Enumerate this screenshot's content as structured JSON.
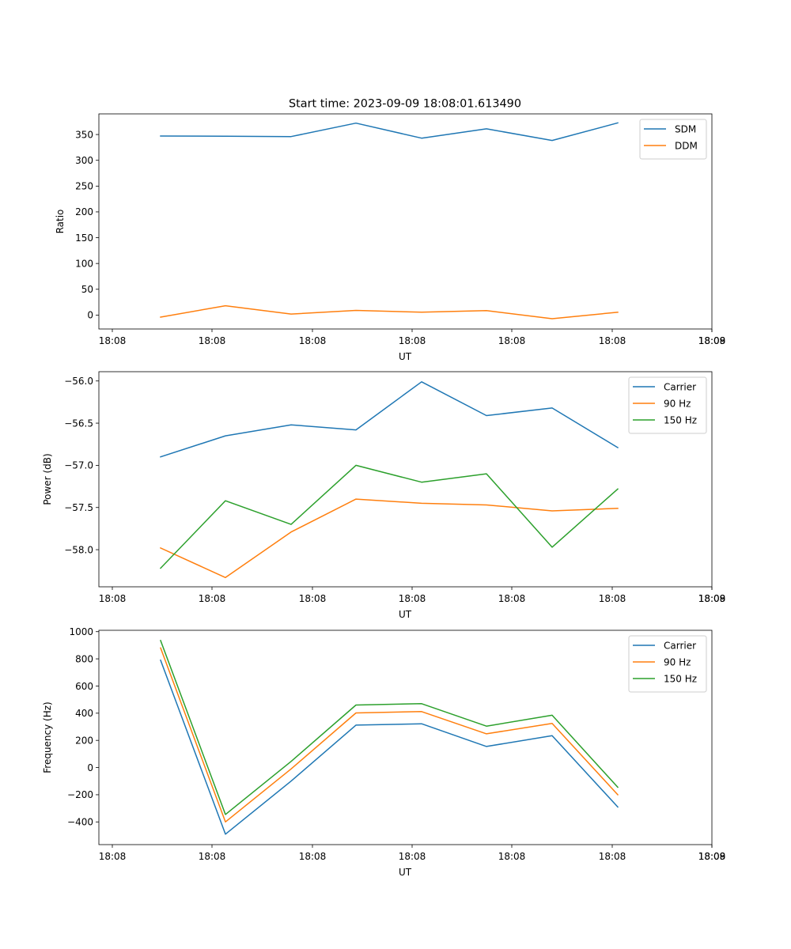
{
  "figure_title": "Start time: 2023-09-09 18:08:01.613490",
  "colors": {
    "blue": "#1f77b4",
    "orange": "#ff7f0e",
    "green": "#2ca02c"
  },
  "chart_data": [
    {
      "type": "line",
      "title": "Start time: 2023-09-09 18:08:01.613490",
      "xlabel": "UT",
      "ylabel": "Ratio",
      "x_ticks": [
        "18:08",
        "18:08",
        "18:08",
        "18:08",
        "18:08",
        "18:08",
        "18:08"
      ],
      "x_tick_last": "18:09",
      "yticks": [
        0,
        50,
        100,
        150,
        200,
        250,
        300,
        350
      ],
      "ytick_labels": [
        "0",
        "50",
        "100",
        "150",
        "200",
        "250",
        "300",
        "350"
      ],
      "ylim": [
        -27,
        390
      ],
      "legend": "top-right",
      "series": [
        {
          "name": "SDM",
          "color": "#1f77b4",
          "values": [
            347,
            346.8,
            346,
            372,
            343,
            361,
            338.5,
            372.5
          ]
        },
        {
          "name": "DDM",
          "color": "#ff7f0e",
          "values": [
            -4,
            18,
            2,
            9,
            5.5,
            8.5,
            -7,
            5.5
          ]
        }
      ]
    },
    {
      "type": "line",
      "xlabel": "UT",
      "ylabel": "Power (dB)",
      "x_ticks": [
        "18:08",
        "18:08",
        "18:08",
        "18:08",
        "18:08",
        "18:08",
        "18:08"
      ],
      "x_tick_last": "18:09",
      "yticks": [
        -58.0,
        -57.5,
        -57.0,
        -56.5,
        -56.0
      ],
      "ytick_labels": [
        "−58.0",
        "−57.5",
        "−57.0",
        "−56.5",
        "−56.0"
      ],
      "ylim": [
        -58.44,
        -55.89
      ],
      "legend": "top-right",
      "series": [
        {
          "name": "Carrier",
          "color": "#1f77b4",
          "values": [
            -56.9,
            -56.65,
            -56.52,
            -56.58,
            -56.01,
            -56.41,
            -56.32,
            -56.79
          ]
        },
        {
          "name": "90 Hz",
          "color": "#ff7f0e",
          "values": [
            -57.98,
            -58.33,
            -57.79,
            -57.4,
            -57.45,
            -57.47,
            -57.54,
            -57.51
          ]
        },
        {
          "name": "150 Hz",
          "color": "#2ca02c",
          "values": [
            -58.22,
            -57.42,
            -57.7,
            -57.0,
            -57.2,
            -57.1,
            -57.97,
            -57.28
          ]
        }
      ]
    },
    {
      "type": "line",
      "xlabel": "UT",
      "ylabel": "Frequency (Hz)",
      "x_ticks": [
        "18:08",
        "18:08",
        "18:08",
        "18:08",
        "18:08",
        "18:08",
        "18:08"
      ],
      "x_tick_last": "18:09",
      "yticks": [
        -400,
        -200,
        0,
        200,
        400,
        600,
        800,
        1000
      ],
      "ytick_labels": [
        "−400",
        "−200",
        "0",
        "200",
        "400",
        "600",
        "800",
        "1000"
      ],
      "ylim": [
        -567,
        1010
      ],
      "legend": "top-right",
      "series": [
        {
          "name": "Carrier",
          "color": "#1f77b4",
          "values": [
            790,
            -490,
            -100,
            312,
            322,
            155,
            235,
            -290
          ]
        },
        {
          "name": "90 Hz",
          "color": "#ff7f0e",
          "values": [
            880,
            -400,
            -10,
            402,
            412,
            248,
            325,
            -200
          ]
        },
        {
          "name": "150 Hz",
          "color": "#2ca02c",
          "values": [
            935,
            -345,
            45,
            460,
            470,
            305,
            385,
            -145
          ]
        }
      ]
    }
  ]
}
